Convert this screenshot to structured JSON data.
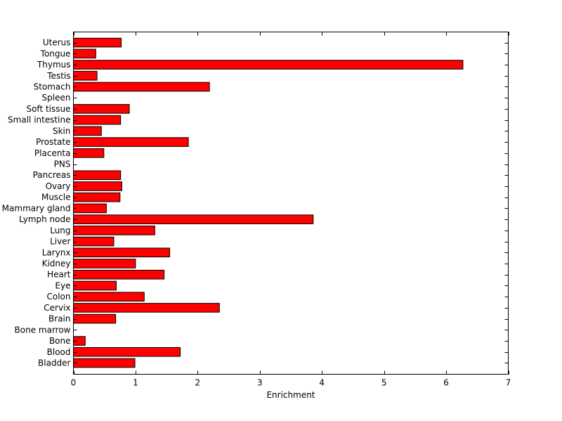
{
  "chart_data": {
    "type": "bar",
    "orientation": "horizontal",
    "categories": [
      "Uterus",
      "Tongue",
      "Thymus",
      "Testis",
      "Stomach",
      "Spleen",
      "Soft tissue",
      "Small intestine",
      "Skin",
      "Prostate",
      "Placenta",
      "PNS",
      "Pancreas",
      "Ovary",
      "Muscle",
      "Mammary gland",
      "Lymph node",
      "Lung",
      "Liver",
      "Larynx",
      "Kidney",
      "Heart",
      "Eye",
      "Colon",
      "Cervix",
      "Brain",
      "Bone marrow",
      "Bone",
      "Blood",
      "Bladder"
    ],
    "values": [
      0.77,
      0.36,
      6.27,
      0.38,
      2.19,
      0,
      0.9,
      0.76,
      0.45,
      1.85,
      0.49,
      0,
      0.76,
      0.78,
      0.75,
      0.53,
      3.86,
      1.31,
      0.65,
      1.55,
      1.0,
      1.46,
      0.69,
      1.14,
      2.35,
      0.68,
      0,
      0.19,
      1.72,
      0.99
    ],
    "title": "",
    "xlabel": "Enrichment",
    "ylabel": "",
    "xlim": [
      0,
      7
    ],
    "xticks": [
      "0",
      "1",
      "2",
      "3",
      "4",
      "5",
      "6",
      "7"
    ],
    "grid": false,
    "legend": "none",
    "bar_color": "#ff0000",
    "edge_color": "#000000"
  }
}
